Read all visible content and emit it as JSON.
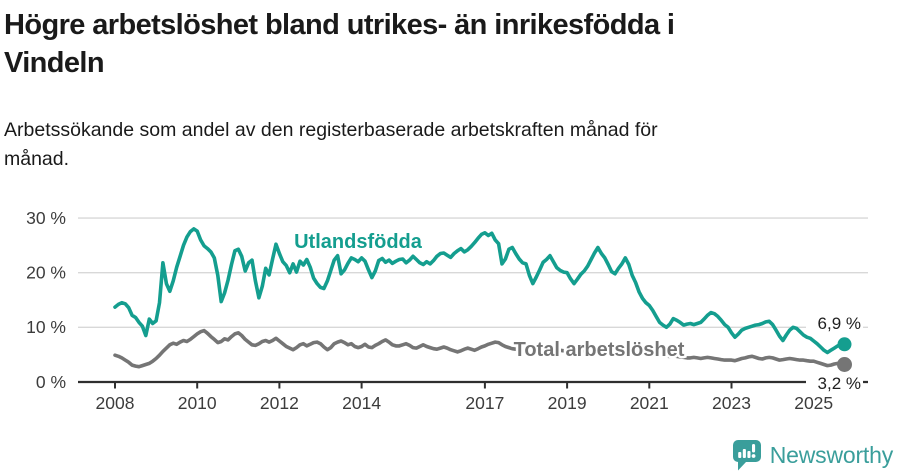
{
  "header": {
    "title_line1": "Högre arbetslöshet bland utrikes- än inrikesfödda i",
    "title_line2": "Vindeln",
    "subtitle_line1": "Arbetssökande som andel av den registerbaserade arbetskraften månad för",
    "subtitle_line2": "månad."
  },
  "footer": {
    "brand": "Newsworthy",
    "logo_icon": "bar-chart-speech-bubble-icon",
    "logo_color": "#3a9e9b"
  },
  "chart_data": {
    "type": "line",
    "title": "Högre arbetslöshet bland utrikes- än inrikesfödda i Vindeln",
    "subtitle": "Arbetssökande som andel av den registerbaserade arbetskraften månad för månad.",
    "xlabel": "",
    "ylabel": "",
    "x_start_year": 2008,
    "x_step_months": 1,
    "x_end": "2025-10",
    "ylim": [
      0,
      32
    ],
    "grid": true,
    "legend_position": "inline-labels",
    "colors": {
      "grid": "#d8d8d8",
      "axis": "#2f2f2f",
      "tick_text": "#3c3c3c",
      "background": "#ffffff"
    },
    "x_axis": {
      "ticks": [
        {
          "label": "2008"
        },
        {
          "label": "2010"
        },
        {
          "label": "2012"
        },
        {
          "label": "2014"
        },
        {
          "label": "2017"
        },
        {
          "label": "2019"
        },
        {
          "label": "2021"
        },
        {
          "label": "2023"
        },
        {
          "label": "2025"
        }
      ]
    },
    "y_axis": {
      "ticks": [
        {
          "value": 0,
          "label": "0 %"
        },
        {
          "value": 10,
          "label": "10 %"
        },
        {
          "value": 20,
          "label": "20 %"
        },
        {
          "value": 30,
          "label": "30 %"
        }
      ]
    },
    "series": [
      {
        "name": "Utlandsfödda",
        "color": "#149e8f",
        "end_label": "6,9 %",
        "end_value": 6.9,
        "values": [
          13.7,
          14.2,
          14.5,
          14.3,
          13.6,
          12.2,
          11.8,
          10.9,
          10.2,
          8.5,
          11.5,
          10.7,
          11.2,
          14.5,
          21.8,
          18.0,
          16.6,
          18.5,
          21.0,
          23.0,
          25.0,
          26.5,
          27.5,
          28.0,
          27.6,
          26.0,
          24.9,
          24.4,
          23.8,
          22.7,
          19.5,
          14.7,
          16.3,
          18.6,
          21.5,
          24.0,
          24.3,
          23.0,
          20.3,
          21.8,
          22.3,
          18.5,
          15.4,
          17.5,
          20.8,
          19.6,
          22.5,
          25.2,
          23.5,
          22.0,
          21.3,
          20.0,
          21.6,
          20.1,
          22.1,
          21.4,
          22.4,
          21.0,
          19.0,
          18.0,
          17.3,
          17.1,
          18.5,
          20.4,
          22.3,
          23.1,
          19.8,
          20.5,
          21.7,
          22.7,
          22.4,
          22.0,
          22.7,
          22.1,
          20.5,
          19.1,
          20.3,
          22.2,
          22.6,
          21.9,
          22.3,
          21.7,
          22.1,
          22.4,
          22.5,
          21.8,
          22.3,
          23.0,
          22.4,
          21.8,
          21.5,
          22.0,
          21.6,
          22.2,
          23.0,
          23.5,
          23.6,
          23.2,
          22.8,
          23.5,
          24.0,
          24.4,
          23.8,
          24.2,
          24.8,
          25.5,
          26.3,
          27.0,
          27.3,
          26.8,
          27.2,
          26.0,
          25.3,
          21.6,
          22.5,
          24.3,
          24.6,
          23.5,
          22.5,
          21.8,
          21.6,
          19.5,
          18.0,
          19.2,
          20.5,
          21.9,
          22.4,
          23.1,
          22.0,
          20.9,
          20.4,
          20.1,
          20.0,
          18.9,
          18.0,
          18.8,
          19.7,
          20.3,
          21.2,
          22.4,
          23.6,
          24.6,
          23.5,
          22.7,
          21.5,
          20.2,
          19.8,
          20.8,
          21.6,
          22.7,
          21.5,
          19.5,
          18.2,
          16.5,
          15.3,
          14.5,
          14.0,
          13.1,
          12.0,
          10.9,
          10.4,
          10.0,
          10.6,
          11.6,
          11.3,
          10.9,
          10.4,
          10.6,
          10.7,
          10.5,
          10.7,
          10.9,
          11.5,
          12.2,
          12.7,
          12.5,
          12.0,
          11.3,
          10.5,
          10.0,
          9.0,
          8.2,
          8.8,
          9.5,
          9.8,
          10.0,
          10.2,
          10.4,
          10.5,
          10.7,
          11.0,
          11.1,
          10.5,
          9.5,
          8.4,
          7.6,
          8.6,
          9.5,
          10.0,
          9.8,
          9.2,
          8.6,
          8.2,
          8.0,
          7.5,
          7.0,
          6.4,
          5.8,
          5.4,
          5.8,
          6.2,
          6.6,
          6.8,
          6.9
        ]
      },
      {
        "name": "Total arbetslöshet",
        "color": "#757575",
        "end_label": "3,2 %",
        "end_value": 3.2,
        "values": [
          4.9,
          4.7,
          4.4,
          4.0,
          3.6,
          3.1,
          2.9,
          2.8,
          3.0,
          3.2,
          3.4,
          3.8,
          4.3,
          4.9,
          5.6,
          6.2,
          6.8,
          7.1,
          6.9,
          7.3,
          7.6,
          7.4,
          7.8,
          8.3,
          8.8,
          9.2,
          9.4,
          8.9,
          8.3,
          7.8,
          7.2,
          7.4,
          7.9,
          7.7,
          8.3,
          8.8,
          9.0,
          8.5,
          7.8,
          7.3,
          6.8,
          6.7,
          7.0,
          7.4,
          7.6,
          7.3,
          7.6,
          8.0,
          7.5,
          7.0,
          6.5,
          6.2,
          5.9,
          6.3,
          6.8,
          7.0,
          6.6,
          6.9,
          7.2,
          7.3,
          7.0,
          6.4,
          5.9,
          6.3,
          7.0,
          7.3,
          7.5,
          7.2,
          6.8,
          7.0,
          6.5,
          6.3,
          6.5,
          6.9,
          6.4,
          6.3,
          6.7,
          7.0,
          7.4,
          7.7,
          7.3,
          6.8,
          6.6,
          6.6,
          6.8,
          7.0,
          6.7,
          6.3,
          6.2,
          6.5,
          6.8,
          6.5,
          6.3,
          6.1,
          6.0,
          6.2,
          6.4,
          6.2,
          5.9,
          5.7,
          5.5,
          5.7,
          6.0,
          6.2,
          6.0,
          5.8,
          6.1,
          6.4,
          6.6,
          6.9,
          7.1,
          7.3,
          7.2,
          6.8,
          6.5,
          6.3,
          6.1,
          6.0,
          6.2,
          6.4,
          6.3,
          6.1,
          5.9,
          5.7,
          5.6,
          5.8,
          6.1,
          6.3,
          6.1,
          5.9,
          5.8,
          5.7,
          5.8,
          5.9,
          6.1,
          6.0,
          5.8,
          5.7,
          5.9,
          6.2,
          6.4,
          6.3,
          6.1,
          6.0,
          6.1,
          6.2,
          6.4,
          6.6,
          6.7,
          6.5,
          6.3,
          6.1,
          5.9,
          5.7,
          5.5,
          5.3,
          5.2,
          5.1,
          5.0,
          4.9,
          4.8,
          4.7,
          4.7,
          4.8,
          4.7,
          4.6,
          4.5,
          4.4,
          4.4,
          4.5,
          4.4,
          4.3,
          4.4,
          4.5,
          4.4,
          4.3,
          4.2,
          4.1,
          4.0,
          4.0,
          4.0,
          3.9,
          4.1,
          4.3,
          4.4,
          4.6,
          4.7,
          4.5,
          4.3,
          4.2,
          4.4,
          4.5,
          4.4,
          4.2,
          4.0,
          4.1,
          4.2,
          4.3,
          4.2,
          4.1,
          4.0,
          4.0,
          3.9,
          3.8,
          3.8,
          3.6,
          3.4,
          3.2,
          3.0,
          3.1,
          3.3,
          3.4,
          3.3,
          3.2
        ]
      }
    ]
  }
}
